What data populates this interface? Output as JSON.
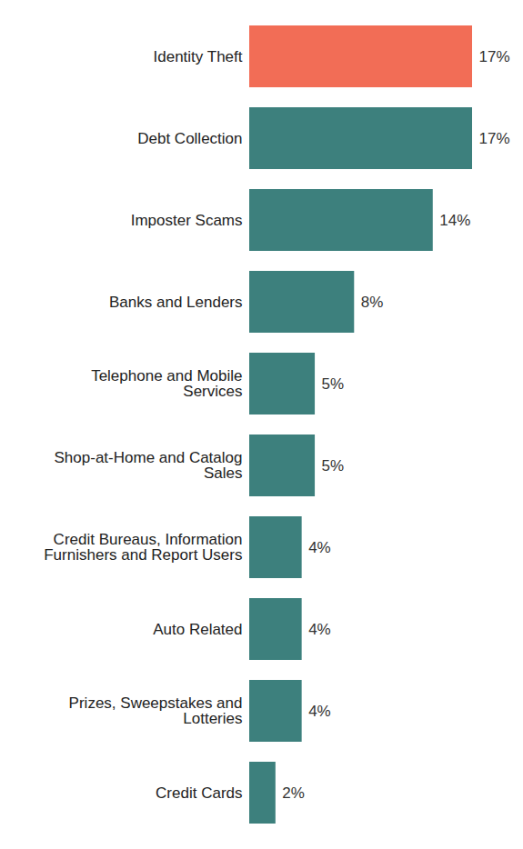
{
  "chart_data": {
    "type": "bar",
    "orientation": "horizontal",
    "categories": [
      "Identity Theft",
      "Debt Collection",
      "Imposter Scams",
      "Banks and Lenders",
      "Telephone and Mobile Services",
      "Shop-at-Home and Catalog Sales",
      "Credit Bureaus, Information Furnishers and Report Users",
      "Auto Related",
      "Prizes, Sweepstakes and Lotteries",
      "Credit Cards"
    ],
    "values": [
      17,
      17,
      14,
      8,
      5,
      5,
      4,
      4,
      4,
      2
    ],
    "value_labels": [
      "17%",
      "17%",
      "14%",
      "8%",
      "5%",
      "5%",
      "4%",
      "4%",
      "4%",
      "2%"
    ],
    "colors": [
      "#f26d56",
      "#3d807d",
      "#3d807d",
      "#3d807d",
      "#3d807d",
      "#3d807d",
      "#3d807d",
      "#3d807d",
      "#3d807d",
      "#3d807d"
    ],
    "data_labels": true,
    "tick_labels": "y",
    "grid": false
  }
}
